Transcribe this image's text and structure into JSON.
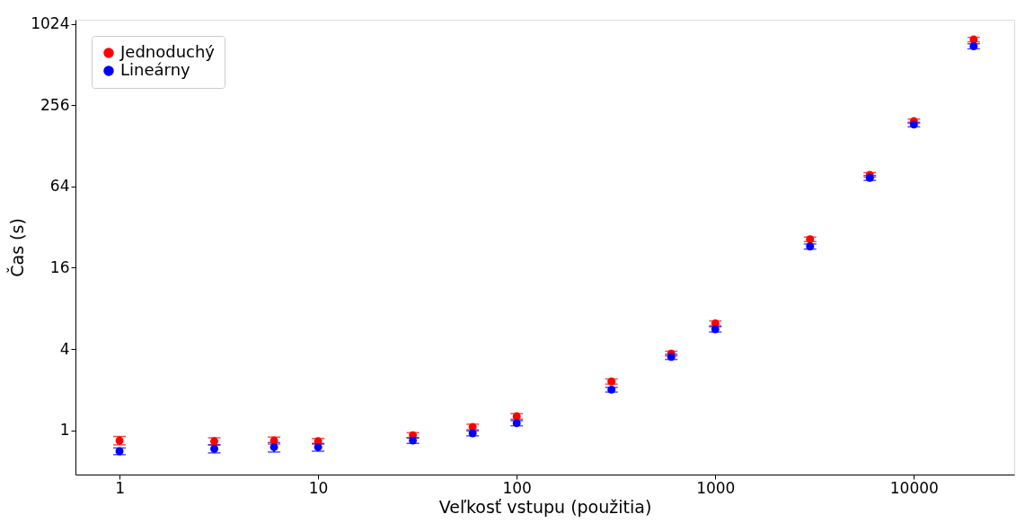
{
  "chart_data": {
    "type": "scatter",
    "xlabel": "Veľkosť vstupu (použitia)",
    "ylabel": "Čas (s)",
    "x": [
      1,
      3,
      6,
      10,
      30,
      60,
      100,
      300,
      600,
      1000,
      3000,
      6000,
      10000,
      20000
    ],
    "log": "xy",
    "xlim": [
      0.6,
      32000
    ],
    "ylim": [
      0.47,
      1100
    ],
    "xticks": [
      1,
      10,
      100,
      1000,
      10000
    ],
    "yticks": [
      1,
      4,
      16,
      64,
      256,
      1024
    ],
    "grid": false,
    "legend": "top left",
    "marker": "circle",
    "series": [
      {
        "name": "Jednoduchý",
        "color": "#ff0000",
        "values": [
          0.84,
          0.83,
          0.84,
          0.83,
          0.92,
          1.06,
          1.27,
          2.3,
          3.7,
          6.2,
          26,
          78,
          195,
          785
        ],
        "errors": [
          0.06,
          0.05,
          0.05,
          0.04,
          0.04,
          0.05,
          0.06,
          0.1,
          0.15,
          0.25,
          1,
          3,
          7,
          30
        ]
      },
      {
        "name": "Lineárny",
        "color": "#0000ff",
        "values": [
          0.7,
          0.73,
          0.75,
          0.75,
          0.84,
          0.95,
          1.13,
          2.0,
          3.5,
          5.6,
          23,
          74,
          184,
          700
        ],
        "errors": [
          0.04,
          0.05,
          0.06,
          0.05,
          0.04,
          0.04,
          0.05,
          0.08,
          0.15,
          0.25,
          1,
          3,
          7,
          30
        ]
      }
    ]
  }
}
